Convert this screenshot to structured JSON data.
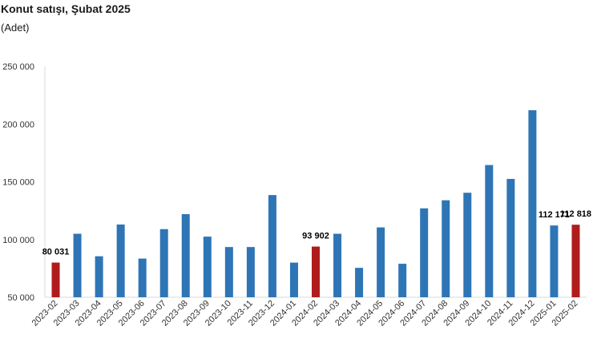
{
  "chart_data": {
    "type": "bar",
    "title": "Konut satışı, Şubat 2025",
    "subtitle": "(Adet)",
    "xlabel": "",
    "ylabel": "",
    "ylim": [
      50000,
      250000
    ],
    "yticks": [
      50000,
      100000,
      150000,
      200000,
      250000
    ],
    "ytick_labels": [
      "50 000",
      "100 000",
      "150 000",
      "200 000",
      "250 000"
    ],
    "categories": [
      "2023-02",
      "2023-03",
      "2023-04",
      "2023-05",
      "2023-06",
      "2023-07",
      "2023-08",
      "2023-09",
      "2023-10",
      "2023-11",
      "2023-12",
      "2024-01",
      "2024-02",
      "2024-03",
      "2024-04",
      "2024-05",
      "2024-06",
      "2024-07",
      "2024-08",
      "2024-09",
      "2024-10",
      "2024-11",
      "2024-12",
      "2025-01",
      "2025-02"
    ],
    "values": [
      80031,
      105000,
      85500,
      113000,
      83500,
      109000,
      122000,
      102500,
      93500,
      93500,
      138500,
      80000,
      93902,
      105000,
      75500,
      110500,
      79000,
      127000,
      134000,
      140500,
      164500,
      152500,
      212000,
      112171,
      112818
    ],
    "highlight_indices": [
      0,
      12,
      24
    ],
    "data_labels": [
      {
        "index": 0,
        "text": "80 031"
      },
      {
        "index": 12,
        "text": "93 902"
      },
      {
        "index": 23,
        "text": "112 171"
      },
      {
        "index": 24,
        "text": "112 818"
      }
    ],
    "colors": {
      "default": "#2e75b6",
      "highlight": "#b01c1c"
    },
    "grid": false,
    "legend": "none"
  }
}
